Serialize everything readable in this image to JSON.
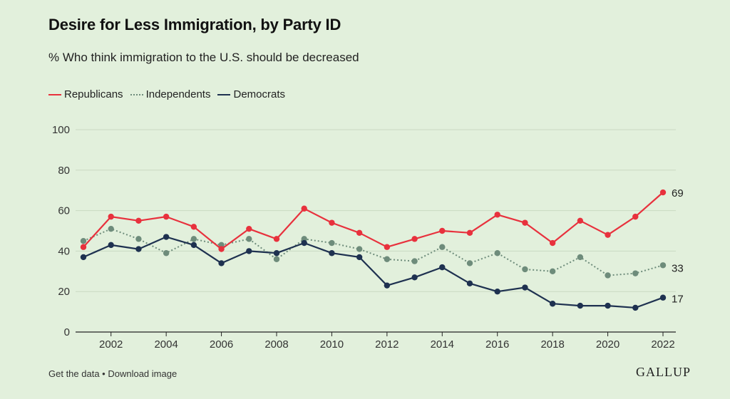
{
  "title": "Desire for Less Immigration, by Party ID",
  "subtitle": "% Who think immigration to the U.S. should be decreased",
  "footer": {
    "get_data": "Get the data",
    "separator": " • ",
    "download": "Download image"
  },
  "brand": "GALLUP",
  "colors": {
    "background": "#e2f0dc",
    "republicans": "#e8313d",
    "independents": "#6e8c7b",
    "democrats": "#1e3150",
    "grid": "#c9d9c2",
    "axis": "#222222"
  },
  "chart_data": {
    "type": "line",
    "title": "Desire for Less Immigration, by Party ID",
    "subtitle": "% Who think immigration to the U.S. should be decreased",
    "xlabel": "",
    "ylabel": "",
    "ylim": [
      0,
      100
    ],
    "yticks": [
      0,
      20,
      40,
      60,
      80,
      100
    ],
    "xlim": [
      2001,
      2022
    ],
    "xticks": [
      2002,
      2004,
      2006,
      2008,
      2010,
      2012,
      2014,
      2016,
      2018,
      2020,
      2022
    ],
    "grid": "horizontal",
    "legend_position": "top-left",
    "x": [
      2001,
      2002,
      2003,
      2004,
      2005,
      2006,
      2007,
      2008,
      2009,
      2010,
      2011,
      2012,
      2013,
      2014,
      2015,
      2016,
      2017,
      2018,
      2019,
      2020,
      2021,
      2022
    ],
    "series": [
      {
        "name": "Republicans",
        "style": "solid",
        "color": "#e8313d",
        "values": [
          42,
          57,
          55,
          57,
          52,
          41,
          51,
          46,
          61,
          54,
          49,
          42,
          46,
          50,
          49,
          58,
          54,
          44,
          55,
          48,
          57,
          69
        ],
        "end_label": "69"
      },
      {
        "name": "Independents",
        "style": "dotted",
        "color": "#6e8c7b",
        "values": [
          45,
          51,
          46,
          39,
          46,
          43,
          46,
          36,
          46,
          44,
          41,
          36,
          35,
          42,
          34,
          39,
          31,
          30,
          37,
          28,
          29,
          33
        ],
        "end_label": "33"
      },
      {
        "name": "Democrats",
        "style": "solid",
        "color": "#1e3150",
        "values": [
          37,
          43,
          41,
          47,
          43,
          34,
          40,
          39,
          44,
          39,
          37,
          23,
          27,
          32,
          24,
          20,
          22,
          14,
          13,
          13,
          12,
          17
        ],
        "end_label": "17"
      }
    ]
  }
}
